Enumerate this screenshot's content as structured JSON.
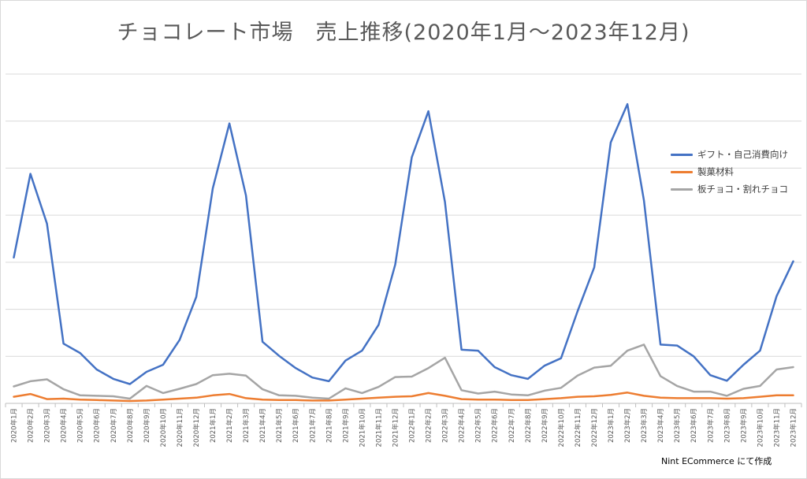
{
  "chart_data": {
    "type": "line",
    "title": "チョコレート市場　売上推移(2020年1月～2023年12月)",
    "xlabel": "",
    "ylabel": "",
    "ylim": [
      0,
      700
    ],
    "grid": true,
    "legend_position": "right",
    "categories": [
      "2020年1月",
      "2020年2月",
      "2020年3月",
      "2020年4月",
      "2020年5月",
      "2020年6月",
      "2020年7月",
      "2020年8月",
      "2020年9月",
      "2020年10月",
      "2020年11月",
      "2020年12月",
      "2021年1月",
      "2021年2月",
      "2021年3月",
      "2021年4月",
      "2021年5月",
      "2021年6月",
      "2021年7月",
      "2021年8月",
      "2021年9月",
      "2021年10月",
      "2021年11月",
      "2021年12月",
      "2022年1月",
      "2022年2月",
      "2022年3月",
      "2022年4月",
      "2022年5月",
      "2022年6月",
      "2022年7月",
      "2022年8月",
      "2022年9月",
      "2022年10月",
      "2022年11月",
      "2022年12月",
      "2023年1月",
      "2023年2月",
      "2023年3月",
      "2023年4月",
      "2023年5月",
      "2023年6月",
      "2023年7月",
      "2023年8月",
      "2023年9月",
      "2023年10月",
      "2023年11月",
      "2023年12月"
    ],
    "series": [
      {
        "name": "ギフト・自己消費向け",
        "color": "#4472C4",
        "values": [
          310,
          488,
          382,
          127,
          107,
          72,
          52,
          41,
          67,
          82,
          135,
          226,
          457,
          595,
          442,
          131,
          101,
          75,
          55,
          47,
          91,
          112,
          167,
          295,
          523,
          621,
          428,
          114,
          112,
          77,
          60,
          52,
          80,
          96,
          196,
          289,
          555,
          636,
          431,
          125,
          123,
          100,
          60,
          48,
          82,
          112,
          228,
          302
        ]
      },
      {
        "name": "製菓材料",
        "color": "#ED7D31",
        "values": [
          14,
          20,
          9,
          10,
          8,
          7,
          6,
          5,
          6,
          8,
          10,
          12,
          17,
          20,
          11,
          8,
          7,
          7,
          6,
          6,
          8,
          10,
          12,
          14,
          15,
          22,
          16,
          9,
          8,
          8,
          7,
          7,
          9,
          11,
          14,
          15,
          18,
          23,
          16,
          12,
          11,
          11,
          11,
          10,
          11,
          14,
          17,
          17
        ]
      },
      {
        "name": "板チョコ・割れチョコ",
        "color": "#A5A5A5",
        "values": [
          36,
          47,
          51,
          30,
          17,
          16,
          15,
          10,
          37,
          22,
          31,
          41,
          60,
          63,
          59,
          30,
          17,
          16,
          12,
          10,
          32,
          22,
          35,
          56,
          57,
          75,
          97,
          28,
          21,
          25,
          19,
          17,
          27,
          33,
          59,
          76,
          80,
          112,
          125,
          58,
          37,
          25,
          25,
          16,
          31,
          37,
          72,
          77
        ]
      }
    ]
  },
  "credit": "Nint ECommerce にて作成"
}
